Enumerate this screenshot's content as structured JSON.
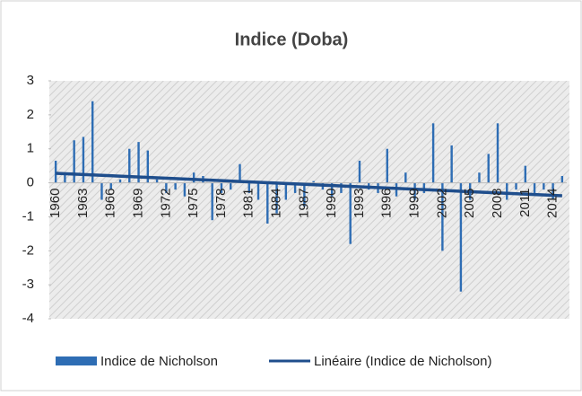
{
  "chart_data": {
    "type": "bar",
    "title": "Indice (Doba)",
    "categories": [
      "1960",
      null,
      null,
      "1963",
      null,
      null,
      "1966",
      null,
      null,
      "1969",
      null,
      null,
      "1972",
      null,
      null,
      "1975",
      null,
      null,
      "1978",
      null,
      null,
      "1981",
      null,
      null,
      "1984",
      null,
      null,
      "1987",
      null,
      null,
      "1990",
      null,
      null,
      "1993",
      null,
      null,
      "1996",
      null,
      null,
      "1999",
      null,
      null,
      "2002",
      null,
      null,
      "2005",
      null,
      null,
      "2008",
      null,
      null,
      "2011",
      null,
      null,
      "2014",
      null
    ],
    "series": [
      {
        "name": "Indice de Nicholson",
        "color": "#2e6db4",
        "values": [
          0.65,
          0.3,
          1.25,
          1.35,
          2.4,
          -0.5,
          -0.2,
          0.1,
          1.0,
          1.2,
          0.95,
          0.1,
          -0.3,
          -0.2,
          -0.4,
          0.3,
          0.2,
          -1.1,
          -0.3,
          -0.2,
          0.55,
          -0.3,
          -0.5,
          -1.2,
          -0.9,
          -0.5,
          -0.3,
          -0.7,
          0.05,
          -0.2,
          -0.4,
          -0.3,
          -1.8,
          0.65,
          -0.2,
          -0.3,
          1.0,
          -0.4,
          0.3,
          -0.5,
          -0.3,
          1.75,
          -2.0,
          1.1,
          -3.2,
          -0.5,
          0.3,
          0.85,
          1.75,
          -0.5,
          -0.2,
          0.5,
          -0.3,
          -0.2,
          -0.5,
          0.2
        ]
      }
    ],
    "trendline": {
      "name": "Linéaire (Indice de Nicholson)",
      "color": "#1f4e8c",
      "values": [
        0.28,
        -0.38
      ]
    },
    "ylim": [
      -4,
      3
    ],
    "yticks": [
      -4,
      -3,
      -2,
      -1,
      0,
      1,
      2,
      3
    ]
  }
}
